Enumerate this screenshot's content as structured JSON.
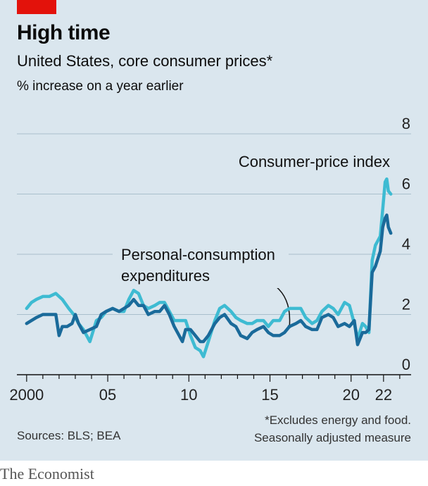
{
  "header": {
    "title": "High time",
    "subtitle": "United States, core consumer prices*",
    "unit": "% increase on a year earlier",
    "accent_color": "#e3120b"
  },
  "footer": {
    "footnote_line1": "*Excludes energy and food.",
    "footnote_line2": "Seasonally adjusted measure",
    "sources": "Sources: BLS; BEA",
    "brand": "The Economist"
  },
  "chart_data": {
    "type": "line",
    "title": "High time",
    "xlabel": "",
    "ylabel": "% increase on a year earlier",
    "ylim": [
      0,
      8
    ],
    "xlim": [
      1999.4,
      2023.7
    ],
    "yticks": [
      0,
      2,
      4,
      6,
      8
    ],
    "xtick_labels": [
      {
        "value": 2000,
        "label": "2000"
      },
      {
        "value": 2005,
        "label": "05"
      },
      {
        "value": 2010,
        "label": "10"
      },
      {
        "value": 2015,
        "label": "15"
      },
      {
        "value": 2020,
        "label": "20"
      },
      {
        "value": 2022,
        "label": "22"
      }
    ],
    "grid": true,
    "series": [
      {
        "name": "Consumer-price index",
        "color": "#3ebbd2",
        "points": [
          [
            2000.0,
            2.2
          ],
          [
            2000.3,
            2.4
          ],
          [
            2000.6,
            2.5
          ],
          [
            2001.0,
            2.6
          ],
          [
            2001.4,
            2.6
          ],
          [
            2001.8,
            2.7
          ],
          [
            2002.2,
            2.5
          ],
          [
            2002.6,
            2.2
          ],
          [
            2002.9,
            2.0
          ],
          [
            2003.2,
            1.7
          ],
          [
            2003.5,
            1.5
          ],
          [
            2003.9,
            1.1
          ],
          [
            2004.3,
            1.8
          ],
          [
            2004.6,
            1.9
          ],
          [
            2004.9,
            2.1
          ],
          [
            2005.3,
            2.2
          ],
          [
            2005.7,
            2.1
          ],
          [
            2006.0,
            2.1
          ],
          [
            2006.3,
            2.5
          ],
          [
            2006.6,
            2.8
          ],
          [
            2006.9,
            2.7
          ],
          [
            2007.2,
            2.3
          ],
          [
            2007.5,
            2.2
          ],
          [
            2007.9,
            2.3
          ],
          [
            2008.2,
            2.4
          ],
          [
            2008.5,
            2.4
          ],
          [
            2008.8,
            2.1
          ],
          [
            2009.1,
            1.8
          ],
          [
            2009.4,
            1.8
          ],
          [
            2009.8,
            1.8
          ],
          [
            2010.1,
            1.3
          ],
          [
            2010.4,
            0.9
          ],
          [
            2010.7,
            0.8
          ],
          [
            2010.9,
            0.6
          ],
          [
            2011.2,
            1.1
          ],
          [
            2011.6,
            1.8
          ],
          [
            2011.9,
            2.2
          ],
          [
            2012.2,
            2.3
          ],
          [
            2012.6,
            2.1
          ],
          [
            2012.9,
            1.9
          ],
          [
            2013.2,
            1.8
          ],
          [
            2013.6,
            1.7
          ],
          [
            2013.9,
            1.7
          ],
          [
            2014.2,
            1.8
          ],
          [
            2014.6,
            1.8
          ],
          [
            2014.9,
            1.6
          ],
          [
            2015.2,
            1.8
          ],
          [
            2015.6,
            1.8
          ],
          [
            2015.9,
            2.1
          ],
          [
            2016.2,
            2.2
          ],
          [
            2016.6,
            2.2
          ],
          [
            2016.9,
            2.2
          ],
          [
            2017.2,
            1.9
          ],
          [
            2017.6,
            1.7
          ],
          [
            2017.9,
            1.8
          ],
          [
            2018.2,
            2.1
          ],
          [
            2018.6,
            2.3
          ],
          [
            2018.9,
            2.2
          ],
          [
            2019.2,
            2.0
          ],
          [
            2019.6,
            2.4
          ],
          [
            2019.9,
            2.3
          ],
          [
            2020.2,
            1.7
          ],
          [
            2020.4,
            1.2
          ],
          [
            2020.7,
            1.7
          ],
          [
            2020.9,
            1.6
          ],
          [
            2021.1,
            1.4
          ],
          [
            2021.3,
            3.8
          ],
          [
            2021.5,
            4.3
          ],
          [
            2021.8,
            4.6
          ],
          [
            2021.95,
            5.5
          ],
          [
            2022.1,
            6.4
          ],
          [
            2022.2,
            6.5
          ],
          [
            2022.3,
            6.1
          ],
          [
            2022.45,
            6.0
          ]
        ]
      },
      {
        "name": "Personal-consumption expenditures",
        "color": "#1a6a9a",
        "points": [
          [
            2000.0,
            1.7
          ],
          [
            2000.3,
            1.8
          ],
          [
            2000.6,
            1.9
          ],
          [
            2001.0,
            2.0
          ],
          [
            2001.4,
            2.0
          ],
          [
            2001.8,
            2.0
          ],
          [
            2002.0,
            1.3
          ],
          [
            2002.2,
            1.6
          ],
          [
            2002.5,
            1.6
          ],
          [
            2002.8,
            1.7
          ],
          [
            2003.0,
            2.0
          ],
          [
            2003.2,
            1.7
          ],
          [
            2003.5,
            1.4
          ],
          [
            2003.9,
            1.5
          ],
          [
            2004.3,
            1.6
          ],
          [
            2004.6,
            2.0
          ],
          [
            2004.9,
            2.1
          ],
          [
            2005.3,
            2.2
          ],
          [
            2005.7,
            2.1
          ],
          [
            2006.0,
            2.2
          ],
          [
            2006.3,
            2.3
          ],
          [
            2006.6,
            2.5
          ],
          [
            2006.9,
            2.3
          ],
          [
            2007.2,
            2.3
          ],
          [
            2007.5,
            2.0
          ],
          [
            2007.9,
            2.1
          ],
          [
            2008.2,
            2.1
          ],
          [
            2008.5,
            2.3
          ],
          [
            2008.8,
            2.0
          ],
          [
            2009.1,
            1.6
          ],
          [
            2009.4,
            1.3
          ],
          [
            2009.6,
            1.1
          ],
          [
            2009.8,
            1.5
          ],
          [
            2010.1,
            1.5
          ],
          [
            2010.4,
            1.3
          ],
          [
            2010.7,
            1.1
          ],
          [
            2010.9,
            1.1
          ],
          [
            2011.2,
            1.3
          ],
          [
            2011.6,
            1.7
          ],
          [
            2011.9,
            1.9
          ],
          [
            2012.2,
            2.0
          ],
          [
            2012.6,
            1.7
          ],
          [
            2012.9,
            1.6
          ],
          [
            2013.2,
            1.3
          ],
          [
            2013.6,
            1.2
          ],
          [
            2013.9,
            1.4
          ],
          [
            2014.2,
            1.5
          ],
          [
            2014.6,
            1.6
          ],
          [
            2014.9,
            1.4
          ],
          [
            2015.2,
            1.3
          ],
          [
            2015.6,
            1.3
          ],
          [
            2015.9,
            1.4
          ],
          [
            2016.2,
            1.6
          ],
          [
            2016.6,
            1.7
          ],
          [
            2016.9,
            1.8
          ],
          [
            2017.2,
            1.6
          ],
          [
            2017.6,
            1.5
          ],
          [
            2017.9,
            1.5
          ],
          [
            2018.2,
            1.9
          ],
          [
            2018.6,
            2.0
          ],
          [
            2018.9,
            1.9
          ],
          [
            2019.2,
            1.6
          ],
          [
            2019.6,
            1.7
          ],
          [
            2019.9,
            1.6
          ],
          [
            2020.2,
            1.8
          ],
          [
            2020.4,
            1.0
          ],
          [
            2020.7,
            1.4
          ],
          [
            2020.9,
            1.4
          ],
          [
            2021.1,
            1.5
          ],
          [
            2021.3,
            3.4
          ],
          [
            2021.5,
            3.6
          ],
          [
            2021.8,
            4.1
          ],
          [
            2021.95,
            4.9
          ],
          [
            2022.1,
            5.2
          ],
          [
            2022.2,
            5.3
          ],
          [
            2022.3,
            4.9
          ],
          [
            2022.45,
            4.7
          ]
        ]
      }
    ],
    "annotations": [
      {
        "text": "Consumer-price index",
        "series": "Consumer-price index"
      },
      {
        "text_lines": [
          "Personal-consumption",
          "expenditures"
        ],
        "series": "Personal-consumption expenditures",
        "points_to": [
          2016.2,
          1.6
        ]
      }
    ]
  }
}
